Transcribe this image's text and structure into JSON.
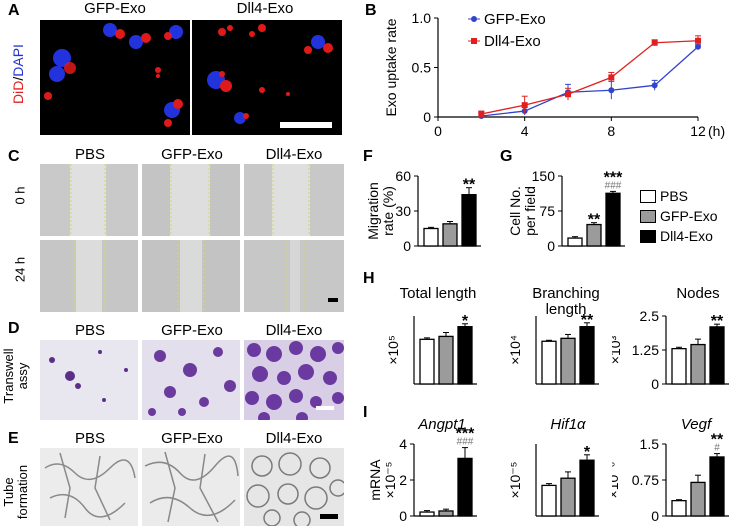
{
  "panels": {
    "A": {
      "label": "A",
      "ylabel_did": "DiD",
      "ylabel_sep": "/",
      "ylabel_dapi": "DAPI",
      "conditions": [
        "GFP-Exo",
        "Dll4-Exo"
      ]
    },
    "B": {
      "label": "B"
    },
    "C": {
      "label": "C",
      "columns": [
        "PBS",
        "GFP-Exo",
        "Dll4-Exo"
      ],
      "rows": [
        "0 h",
        "24 h"
      ]
    },
    "D": {
      "label": "D",
      "columns": [
        "PBS",
        "GFP-Exo",
        "Dll4-Exo"
      ],
      "row_line1": "Transwell",
      "row_line2": "assy"
    },
    "E": {
      "label": "E",
      "columns": [
        "PBS",
        "GFP-Exo",
        "Dll4-Exo"
      ],
      "row_line1": "Tube",
      "row_line2": "formation"
    },
    "F": {
      "label": "F"
    },
    "G": {
      "label": "G"
    },
    "H": {
      "label": "H"
    },
    "I": {
      "label": "I"
    }
  },
  "legend": {
    "items": [
      {
        "name": "PBS",
        "color": "#ffffff"
      },
      {
        "name": "GFP-Exo",
        "color": "#9b9b9b"
      },
      {
        "name": "Dll4-Exo",
        "color": "#000000"
      }
    ]
  },
  "chart_data": [
    {
      "id": "B",
      "type": "line",
      "title": "",
      "xlabel": "(h)",
      "ylabel": "Exo uptake rate",
      "x": [
        2,
        4,
        6,
        8,
        10,
        12
      ],
      "xlim": [
        0,
        12
      ],
      "xticks": [
        0,
        4,
        8,
        12
      ],
      "ylim": [
        0,
        1.0
      ],
      "yticks": [
        0,
        0.5,
        1.0
      ],
      "series": [
        {
          "name": "GFP-Exo",
          "color": "#3344cc",
          "marker": "circle",
          "values": [
            0.01,
            0.06,
            0.25,
            0.27,
            0.32,
            0.71
          ],
          "errors": [
            0.03,
            0.04,
            0.08,
            0.09,
            0.05,
            0.02
          ]
        },
        {
          "name": "Dll4-Exo",
          "color": "#e02020",
          "marker": "square",
          "values": [
            0.03,
            0.12,
            0.23,
            0.4,
            0.75,
            0.77
          ],
          "errors": [
            0.03,
            0.09,
            0.06,
            0.05,
            0.03,
            0.05
          ]
        }
      ]
    },
    {
      "id": "F",
      "type": "bar",
      "ylabel": "Migration rate (%)",
      "ylabel_l1": "Migration",
      "ylabel_l2": "rate (%)",
      "categories": [
        "PBS",
        "GFP-Exo",
        "Dll4-Exo"
      ],
      "values": [
        15,
        19,
        44
      ],
      "errors": [
        1,
        2,
        6
      ],
      "ylim": [
        0,
        60
      ],
      "yticks": [
        0,
        30,
        60
      ],
      "sig": [
        "",
        "",
        "**"
      ],
      "sig2": [
        "",
        "",
        ""
      ]
    },
    {
      "id": "G",
      "type": "bar",
      "ylabel": "Cell No. per field",
      "ylabel_l1": "Cell No.",
      "ylabel_l2": "per field",
      "categories": [
        "PBS",
        "GFP-Exo",
        "Dll4-Exo"
      ],
      "values": [
        17,
        46,
        113
      ],
      "errors": [
        3,
        4,
        4
      ],
      "ylim": [
        0,
        150
      ],
      "yticks": [
        0,
        75,
        150
      ],
      "sig": [
        "",
        "**",
        "***"
      ],
      "sig2": [
        "",
        "",
        "###"
      ]
    },
    {
      "id": "H1",
      "type": "bar",
      "title": "Total length",
      "ylabel": "×10⁵",
      "categories": [
        "PBS",
        "GFP-Exo",
        "Dll4-Exo"
      ],
      "values": [
        4.6,
        4.9,
        5.9
      ],
      "errors": [
        0.15,
        0.4,
        0.3
      ],
      "ylim": [
        0,
        7
      ],
      "sig": [
        "",
        "",
        "*"
      ],
      "sig2": [
        "",
        "",
        ""
      ]
    },
    {
      "id": "H2",
      "type": "bar",
      "title": "Branching length",
      "title_l1": "Branching",
      "title_l2": "length",
      "ylabel": "×10⁴",
      "categories": [
        "PBS",
        "GFP-Exo",
        "Dll4-Exo"
      ],
      "values": [
        4.4,
        4.7,
        5.9
      ],
      "errors": [
        0.1,
        0.4,
        0.4
      ],
      "ylim": [
        0,
        7
      ],
      "sig": [
        "",
        "",
        "**"
      ],
      "sig2": [
        "",
        "",
        ""
      ]
    },
    {
      "id": "H3",
      "type": "bar",
      "title": "Nodes",
      "ylabel": "×10³",
      "categories": [
        "PBS",
        "GFP-Exo",
        "Dll4-Exo"
      ],
      "values": [
        1.3,
        1.45,
        2.1
      ],
      "errors": [
        0.05,
        0.2,
        0.1
      ],
      "ylim": [
        0,
        2.5
      ],
      "yticks": [
        0,
        1.25,
        2.5
      ],
      "sig": [
        "",
        "",
        "**"
      ],
      "sig2": [
        "",
        "",
        ""
      ]
    },
    {
      "id": "I1",
      "type": "bar",
      "title": "Angpt1",
      "ylabel": "mRNA ×10⁻⁵",
      "ylabel_l1": "mRNA",
      "ylabel_l2": "×10⁻⁵",
      "categories": [
        "PBS",
        "GFP-Exo",
        "Dll4-Exo"
      ],
      "values": [
        0.22,
        0.28,
        3.2
      ],
      "errors": [
        0.08,
        0.1,
        0.6
      ],
      "ylim": [
        0,
        4
      ],
      "yticks": [
        0,
        2,
        4
      ],
      "sig": [
        "",
        "",
        "***"
      ],
      "sig2": [
        "",
        "",
        "###"
      ]
    },
    {
      "id": "I2",
      "type": "bar",
      "title": "Hif1α",
      "ylabel": "×10⁻⁵",
      "categories": [
        "PBS",
        "GFP-Exo",
        "Dll4-Exo"
      ],
      "values": [
        1.7,
        2.1,
        3.1
      ],
      "errors": [
        0.1,
        0.35,
        0.3
      ],
      "ylim": [
        0,
        4
      ],
      "sig": [
        "",
        "",
        "*"
      ],
      "sig2": [
        "",
        "",
        ""
      ]
    },
    {
      "id": "I3",
      "type": "bar",
      "title": "Vegf",
      "ylabel": "×10⁻⁶",
      "categories": [
        "PBS",
        "GFP-Exo",
        "Dll4-Exo"
      ],
      "values": [
        0.32,
        0.7,
        1.23
      ],
      "errors": [
        0.02,
        0.15,
        0.07
      ],
      "ylim": [
        0,
        1.5
      ],
      "yticks": [
        0,
        0.75,
        1.5
      ],
      "sig": [
        "",
        "",
        "**"
      ],
      "sig2": [
        "",
        "",
        "#"
      ]
    }
  ]
}
